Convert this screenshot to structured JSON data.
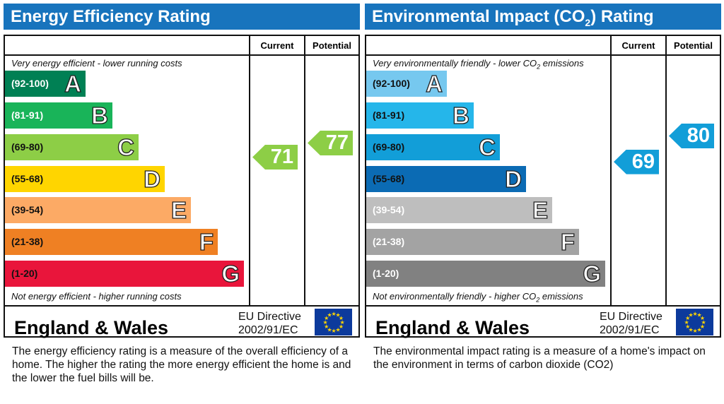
{
  "chart_data": [
    {
      "type": "table",
      "title": "Energy Efficiency Rating",
      "title_sub": "",
      "column_headers": [
        "Current",
        "Potential"
      ],
      "top_note": "Very energy efficient - lower running costs",
      "top_note_sub": "",
      "top_note_tail": "",
      "bottom_note": "Not energy efficient - higher running costs",
      "bottom_note_sub": "",
      "bottom_note_tail": "",
      "bands": [
        {
          "range": "(92-100)",
          "letter": "A",
          "color": "#008054",
          "text": "#fff"
        },
        {
          "range": "(81-91)",
          "letter": "B",
          "color": "#19b459",
          "text": "#fff"
        },
        {
          "range": "(69-80)",
          "letter": "C",
          "color": "#8dce46",
          "text": "#111"
        },
        {
          "range": "(55-68)",
          "letter": "D",
          "color": "#ffd500",
          "text": "#111"
        },
        {
          "range": "(39-54)",
          "letter": "E",
          "color": "#fcaa65",
          "text": "#111"
        },
        {
          "range": "(21-38)",
          "letter": "F",
          "color": "#ef8023",
          "text": "#111"
        },
        {
          "range": "(1-20)",
          "letter": "G",
          "color": "#e9153b",
          "text": "#111"
        }
      ],
      "current": 71,
      "current_color": "#8dce46",
      "potential": 77,
      "potential_color": "#8dce46",
      "region": "England & Wales",
      "directive_line1": "EU Directive",
      "directive_line2": "2002/91/EC",
      "description": "The energy efficiency rating is a measure of the overall efficiency of a home.  The higher the rating the more energy efficient the home is and the lower the fuel bills will be."
    },
    {
      "type": "table",
      "title": "Environmental Impact (CO",
      "title_sub": "2",
      "title_tail": ") Rating",
      "column_headers": [
        "Current",
        "Potential"
      ],
      "top_note": "Very environmentally friendly - lower CO",
      "top_note_sub": "2",
      "top_note_tail": " emissions",
      "bottom_note": "Not environmentally friendly - higher CO",
      "bottom_note_sub": "2",
      "bottom_note_tail": " emissions",
      "bands": [
        {
          "range": "(92-100)",
          "letter": "A",
          "color": "#76c8ef",
          "text": "#111"
        },
        {
          "range": "(81-91)",
          "letter": "B",
          "color": "#25b6ea",
          "text": "#111"
        },
        {
          "range": "(69-80)",
          "letter": "C",
          "color": "#129ed8",
          "text": "#111"
        },
        {
          "range": "(55-68)",
          "letter": "D",
          "color": "#0b6bb4",
          "text": "#111"
        },
        {
          "range": "(39-54)",
          "letter": "E",
          "color": "#bebebe",
          "text": "#fff"
        },
        {
          "range": "(21-38)",
          "letter": "F",
          "color": "#a3a3a3",
          "text": "#fff"
        },
        {
          "range": "(1-20)",
          "letter": "G",
          "color": "#818181",
          "text": "#fff"
        }
      ],
      "current": 69,
      "current_color": "#129ed8",
      "potential": 80,
      "potential_color": "#129ed8",
      "region": "England & Wales",
      "directive_line1": "EU Directive",
      "directive_line2": "2002/91/EC",
      "description": "The environmental impact rating is a measure of a home's impact on the environment in terms of carbon dioxide (CO2)"
    }
  ]
}
